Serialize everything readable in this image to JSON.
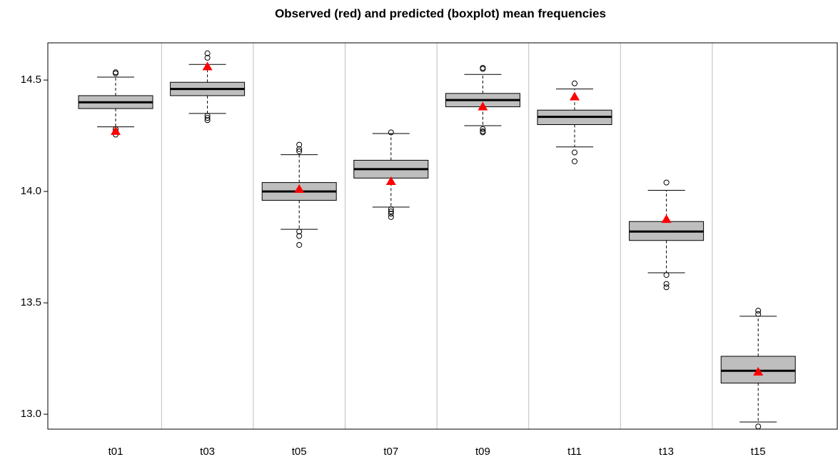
{
  "chart_data": {
    "type": "boxplot",
    "title": "Observed (red) and predicted (boxplot) mean frequencies",
    "categories": [
      "t01",
      "t03",
      "t05",
      "t07",
      "t09",
      "t11",
      "t13",
      "t15"
    ],
    "boxes": [
      {
        "whisker_low": 14.29,
        "q1": 14.372,
        "median": 14.4,
        "q3": 14.43,
        "whisker_high": 14.513,
        "outliers": [
          14.535,
          14.53,
          14.28,
          14.27,
          14.255
        ]
      },
      {
        "whisker_low": 14.35,
        "q1": 14.43,
        "median": 14.46,
        "q3": 14.49,
        "whisker_high": 14.57,
        "outliers": [
          14.62,
          14.6,
          14.34,
          14.33,
          14.32
        ]
      },
      {
        "whisker_low": 13.83,
        "q1": 13.96,
        "median": 14.0,
        "q3": 14.04,
        "whisker_high": 14.165,
        "outliers": [
          14.21,
          14.19,
          14.18,
          13.82,
          13.8,
          13.76
        ]
      },
      {
        "whisker_low": 13.93,
        "q1": 14.06,
        "median": 14.1,
        "q3": 14.14,
        "whisker_high": 14.26,
        "outliers": [
          14.265,
          13.92,
          13.91,
          13.9,
          13.885
        ]
      },
      {
        "whisker_low": 14.295,
        "q1": 14.38,
        "median": 14.41,
        "q3": 14.44,
        "whisker_high": 14.525,
        "outliers": [
          14.555,
          14.55,
          14.28,
          14.27,
          14.265
        ]
      },
      {
        "whisker_low": 14.2,
        "q1": 14.3,
        "median": 14.335,
        "q3": 14.365,
        "whisker_high": 14.46,
        "outliers": [
          14.485,
          14.175,
          14.135
        ]
      },
      {
        "whisker_low": 13.635,
        "q1": 13.78,
        "median": 13.82,
        "q3": 13.865,
        "whisker_high": 14.005,
        "outliers": [
          14.04,
          13.625,
          13.585,
          13.57
        ]
      },
      {
        "whisker_low": 12.965,
        "q1": 13.14,
        "median": 13.195,
        "q3": 13.26,
        "whisker_high": 13.44,
        "outliers": [
          13.465,
          13.45,
          12.945
        ]
      }
    ],
    "observed": [
      14.27,
      14.56,
      14.01,
      14.045,
      14.38,
      14.425,
      13.875,
      13.19
    ],
    "box_color": "#bebebe",
    "observed_color": "#ff0000",
    "separator_color": "#bebebe",
    "group_separators": true,
    "ylim": [
      12.933,
      14.667
    ],
    "yticks": [
      {
        "value": 13.0,
        "label": "13.0"
      },
      13.5,
      {
        "value": 14.0,
        "label": "14.0"
      },
      14.5
    ]
  }
}
